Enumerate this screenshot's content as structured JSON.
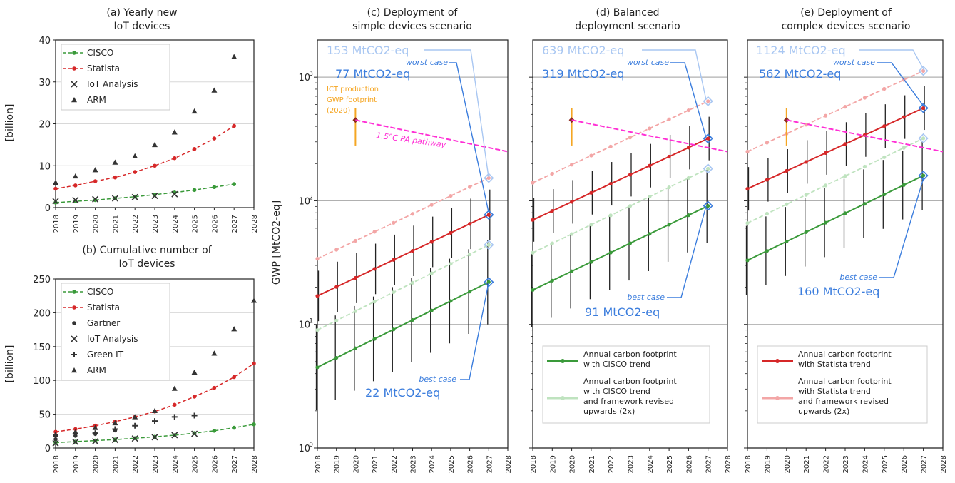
{
  "panels": {
    "a": {
      "title_lines": [
        "(a) Yearly new",
        "IoT devices"
      ],
      "ylabel": "[billion]"
    },
    "b": {
      "title_lines": [
        "(b) Cumulative number of",
        "IoT devices"
      ],
      "ylabel": "[billion]"
    },
    "c": {
      "title_lines": [
        "(c) Deployment of",
        "simple devices scenario"
      ]
    },
    "d": {
      "title_lines": [
        "(d)  Balanced",
        "deployment scenario"
      ]
    },
    "e": {
      "title_lines": [
        "(e)  Deployment of",
        "complex devices scenario"
      ]
    }
  },
  "gwp_ylabel": "GWP [MtCO2-eq]",
  "colors": {
    "cisco": "#3a9a3a",
    "statista": "#d62728",
    "statista_light": "#f3a6a6",
    "cisco_light": "#bfe3bf",
    "annotation_blue": "#3b7ddd",
    "annotation_blue_light": "#a9c7f2",
    "ict": "#f5a623",
    "pathway": "#ff2fd5",
    "grid": "#b0b0b0",
    "marker_black": "#333333"
  },
  "annotations": {
    "c": {
      "worst_light": "153 MtCO2-eq",
      "worst": "77 MtCO2-eq",
      "worst_label": "worst case",
      "best": "22 MtCO2-eq",
      "best_label": "best case"
    },
    "d": {
      "worst_light": "639 MtCO2-eq",
      "worst": "319 MtCO2-eq",
      "worst_label": "worst case",
      "best": "91 MtCO2-eq",
      "best_label": "best case"
    },
    "e": {
      "worst_light": "1124 MtCO2-eq",
      "worst": "562 MtCO2-eq",
      "worst_label": "worst case",
      "best": "160 MtCO2-eq",
      "best_label": "best case"
    },
    "ict_lines": [
      "ICT production",
      "GWP footprint",
      "(2020)"
    ],
    "pathway": "1.5°C PA pathway"
  },
  "legends": {
    "d": [
      {
        "lines": [
          "Annual carbon footprint",
          "with CISCO trend"
        ],
        "style": "cisco"
      },
      {
        "lines": [
          "Annual carbon footprint",
          "with CISCO trend",
          "and framework revised",
          "upwards (2x)"
        ],
        "style": "cisco_light"
      }
    ],
    "e": [
      {
        "lines": [
          "Annual carbon footprint",
          "with Statista trend"
        ],
        "style": "statista"
      },
      {
        "lines": [
          "Annual carbon footprint",
          "with Statista trend",
          "and framework revised",
          "upwards (2x)"
        ],
        "style": "statista_light"
      }
    ]
  },
  "chart_data": [
    {
      "id": "a",
      "type": "scatter",
      "xlim": [
        2018,
        2028
      ],
      "ylim": [
        0,
        40
      ],
      "xticks": [
        "2018",
        "2019",
        "2020",
        "2021",
        "2022",
        "2023",
        "2024",
        "2025",
        "2026",
        "2027",
        "2028"
      ],
      "yticks": [
        0,
        10,
        20,
        30,
        40
      ],
      "series": [
        {
          "name": "CISCO",
          "marker": "dot",
          "fit": true,
          "style": "cisco",
          "x": [
            2018,
            2019,
            2020,
            2021,
            2022,
            2023,
            2024,
            2025,
            2026,
            2027
          ],
          "y": [
            1.2,
            1.5,
            1.8,
            2.2,
            2.6,
            3.1,
            3.6,
            4.2,
            4.9,
            5.6
          ]
        },
        {
          "name": "Statista",
          "marker": "dot",
          "fit": true,
          "style": "statista",
          "x": [
            2018,
            2019,
            2020,
            2021,
            2022,
            2023,
            2024,
            2025,
            2026,
            2027
          ],
          "y": [
            4.5,
            5.3,
            6.3,
            7.2,
            8.5,
            10.0,
            11.8,
            14.0,
            16.5,
            19.5
          ]
        },
        {
          "name": "IoT Analysis",
          "marker": "x",
          "style": "marker_black",
          "x": [
            2018,
            2019,
            2020,
            2021,
            2022,
            2023,
            2024
          ],
          "y": [
            1.5,
            1.8,
            2.0,
            2.2,
            2.5,
            2.8,
            3.2
          ]
        },
        {
          "name": "ARM",
          "marker": "triangle",
          "style": "marker_black",
          "x": [
            2018,
            2019,
            2020,
            2021,
            2022,
            2023,
            2024,
            2025,
            2026,
            2027
          ],
          "y": [
            6.0,
            7.5,
            9.0,
            10.8,
            12.3,
            15.0,
            18.0,
            23.0,
            28.0,
            36.0
          ]
        }
      ]
    },
    {
      "id": "b",
      "type": "scatter",
      "xlim": [
        2018,
        2028
      ],
      "ylim": [
        0,
        250
      ],
      "xticks": [
        "2018",
        "2019",
        "2020",
        "2021",
        "2022",
        "2023",
        "2024",
        "2025",
        "2026",
        "2027",
        "2028"
      ],
      "yticks": [
        0,
        50,
        100,
        150,
        200,
        250
      ],
      "series": [
        {
          "name": "CISCO",
          "marker": "dot",
          "fit": true,
          "style": "cisco",
          "x": [
            2018,
            2019,
            2020,
            2021,
            2022,
            2023,
            2024,
            2025,
            2026,
            2027,
            2028
          ],
          "y": [
            8,
            9.5,
            11,
            12.5,
            14.5,
            16.5,
            19,
            22,
            25.5,
            30,
            35
          ]
        },
        {
          "name": "Statista",
          "marker": "dot",
          "fit": true,
          "style": "statista",
          "x": [
            2018,
            2019,
            2020,
            2021,
            2022,
            2023,
            2024,
            2025,
            2026,
            2027,
            2028
          ],
          "y": [
            24,
            28,
            33,
            39,
            46,
            54,
            64,
            76,
            89,
            105,
            125
          ]
        },
        {
          "name": "Gartner",
          "marker": "dot",
          "style": "marker_black",
          "x": [
            2018,
            2019,
            2020,
            2021
          ],
          "y": [
            13,
            18,
            21,
            26
          ]
        },
        {
          "name": "IoT Analysis",
          "marker": "x",
          "style": "marker_black",
          "x": [
            2018,
            2019,
            2020,
            2021,
            2022,
            2023,
            2024,
            2025
          ],
          "y": [
            7,
            9,
            10,
            12,
            14,
            16,
            19,
            21
          ]
        },
        {
          "name": "Green IT",
          "marker": "plus",
          "style": "marker_black",
          "x": [
            2018,
            2019,
            2020,
            2021,
            2022,
            2023,
            2024,
            2025
          ],
          "y": [
            19,
            21,
            22,
            28,
            33,
            40,
            46,
            48
          ]
        },
        {
          "name": "ARM",
          "marker": "triangle",
          "style": "marker_black",
          "x": [
            2018,
            2019,
            2020,
            2021,
            2022,
            2023,
            2024,
            2025,
            2026,
            2027,
            2028
          ],
          "y": [
            20,
            24,
            30,
            37,
            46,
            55,
            88,
            112,
            140,
            176,
            218
          ]
        }
      ]
    },
    {
      "id": "c",
      "type": "line",
      "xlim": [
        2018,
        2028
      ],
      "ylim": [
        1,
        2000
      ],
      "yscale": "log",
      "xticks": [
        "2018",
        "2019",
        "2020",
        "2021",
        "2022",
        "2023",
        "2024",
        "2025",
        "2026",
        "2027",
        "2028"
      ],
      "series": [
        {
          "name": "CISCO trend",
          "style": "cisco",
          "x": [
            2018,
            2027
          ],
          "y": [
            4.5,
            22
          ],
          "errfactor": 2.2
        },
        {
          "name": "CISCO trend revised upwards (2x)",
          "style": "cisco_light",
          "x": [
            2018,
            2027
          ],
          "y": [
            9,
            44
          ],
          "errfactor": 2.2
        },
        {
          "name": "Statista trend",
          "style": "statista",
          "x": [
            2018,
            2027
          ],
          "y": [
            17,
            77
          ],
          "errfactor": 1.6
        },
        {
          "name": "Statista trend revised upwards (2x)",
          "style": "statista_light",
          "x": [
            2018,
            2027
          ],
          "y": [
            34,
            153
          ],
          "errfactor": 1.6
        }
      ],
      "ict_2020": {
        "x": 2020,
        "y": 450,
        "low": 280,
        "high": 560
      },
      "pathway": {
        "x": [
          2020,
          2028
        ],
        "y": [
          450,
          250
        ]
      }
    },
    {
      "id": "d",
      "type": "line",
      "xlim": [
        2018,
        2028
      ],
      "ylim": [
        1,
        2000
      ],
      "yscale": "log",
      "xticks": [
        "2018",
        "2019",
        "2020",
        "2021",
        "2022",
        "2023",
        "2024",
        "2025",
        "2026",
        "2027",
        "2028"
      ],
      "series": [
        {
          "name": "CISCO trend",
          "style": "cisco",
          "x": [
            2018,
            2027
          ],
          "y": [
            19,
            91
          ],
          "errfactor": 2.0
        },
        {
          "name": "CISCO trend revised upwards (2x)",
          "style": "cisco_light",
          "x": [
            2018,
            2027
          ],
          "y": [
            38,
            182
          ],
          "errfactor": 2.0
        },
        {
          "name": "Statista trend",
          "style": "statista",
          "x": [
            2018,
            2027
          ],
          "y": [
            70,
            319
          ],
          "errfactor": 1.5
        },
        {
          "name": "Statista trend revised upwards (2x)",
          "style": "statista_light",
          "x": [
            2018,
            2027
          ],
          "y": [
            140,
            639
          ],
          "errfactor": 1.5
        }
      ],
      "ict_2020": {
        "x": 2020,
        "y": 450,
        "low": 280,
        "high": 560
      },
      "pathway": {
        "x": [
          2020,
          2028
        ],
        "y": [
          450,
          250
        ]
      }
    },
    {
      "id": "e",
      "type": "line",
      "xlim": [
        2018,
        2028
      ],
      "ylim": [
        1,
        2000
      ],
      "yscale": "log",
      "xticks": [
        "2018",
        "2019",
        "2020",
        "2021",
        "2022",
        "2023",
        "2024",
        "2025",
        "2026",
        "2027",
        "2028"
      ],
      "series": [
        {
          "name": "CISCO trend",
          "style": "cisco",
          "x": [
            2018,
            2027
          ],
          "y": [
            33,
            160
          ],
          "errfactor": 1.9
        },
        {
          "name": "CISCO trend revised upwards (2x)",
          "style": "cisco_light",
          "x": [
            2018,
            2027
          ],
          "y": [
            66,
            320
          ],
          "errfactor": 1.9
        },
        {
          "name": "Statista trend",
          "style": "statista",
          "x": [
            2018,
            2027
          ],
          "y": [
            125,
            562
          ],
          "errfactor": 1.5
        },
        {
          "name": "Statista trend revised upwards (2x)",
          "style": "statista_light",
          "x": [
            2018,
            2027
          ],
          "y": [
            250,
            1124
          ],
          "errfactor": 1.5
        }
      ],
      "ict_2020": {
        "x": 2020,
        "y": 450,
        "low": 280,
        "high": 560
      },
      "pathway": {
        "x": [
          2020,
          2028
        ],
        "y": [
          450,
          250
        ]
      }
    }
  ]
}
